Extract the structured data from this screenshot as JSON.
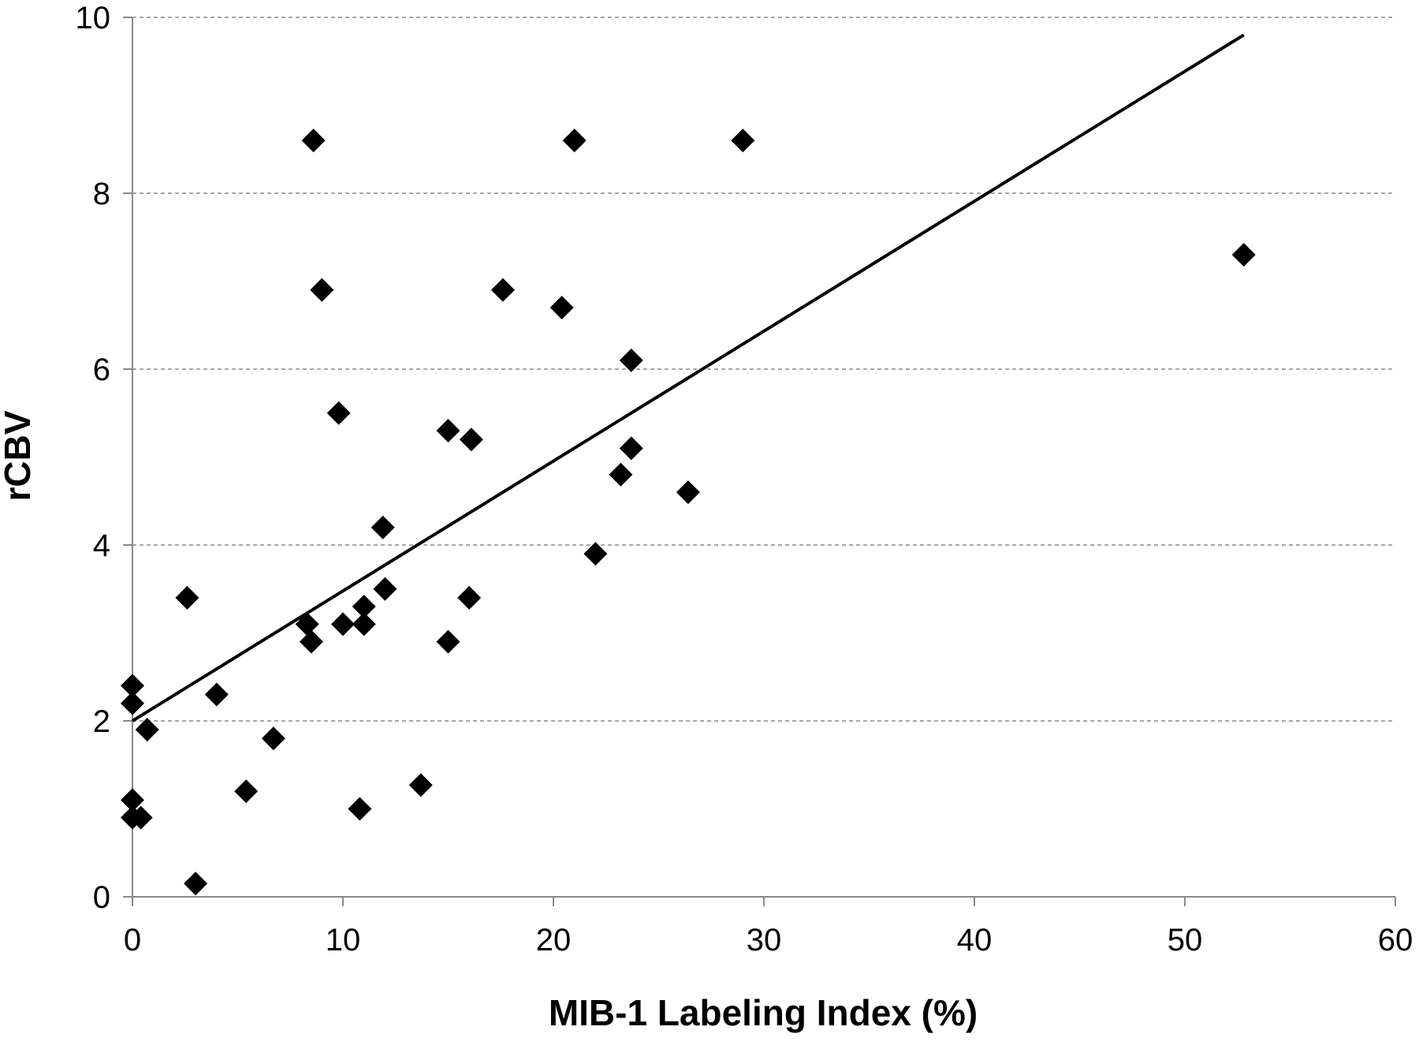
{
  "chart_data": {
    "type": "scatter",
    "title": "",
    "xlabel": "MIB-1 Labeling Index (%)",
    "ylabel": "rCBV",
    "xlim": [
      0,
      60
    ],
    "ylim": [
      0,
      10
    ],
    "x_ticks": [
      "0",
      "10",
      "20",
      "30",
      "40",
      "50",
      "60"
    ],
    "y_ticks": [
      "0",
      "2",
      "4",
      "6",
      "8",
      "10"
    ],
    "grid": {
      "horizontal": true,
      "style": "dashed"
    },
    "legend": "none",
    "marker": "diamond",
    "marker_color": "#000000",
    "trendline": {
      "type": "linear",
      "x": [
        0,
        52.8
      ],
      "y": [
        2.0,
        9.8
      ]
    },
    "points": [
      {
        "x": 0,
        "y": 2.4
      },
      {
        "x": 0,
        "y": 2.2
      },
      {
        "x": 0,
        "y": 1.1
      },
      {
        "x": 0,
        "y": 0.9
      },
      {
        "x": 0.4,
        "y": 0.9
      },
      {
        "x": 0.7,
        "y": 1.9
      },
      {
        "x": 2.6,
        "y": 3.4
      },
      {
        "x": 3.0,
        "y": 0.15
      },
      {
        "x": 4.0,
        "y": 2.3
      },
      {
        "x": 5.4,
        "y": 1.2
      },
      {
        "x": 6.7,
        "y": 1.8
      },
      {
        "x": 8.3,
        "y": 3.1
      },
      {
        "x": 8.5,
        "y": 2.9
      },
      {
        "x": 8.6,
        "y": 8.6
      },
      {
        "x": 9.0,
        "y": 6.9
      },
      {
        "x": 9.8,
        "y": 5.5
      },
      {
        "x": 10.0,
        "y": 3.1
      },
      {
        "x": 10.8,
        "y": 1.0
      },
      {
        "x": 11.0,
        "y": 3.3
      },
      {
        "x": 11.0,
        "y": 3.1
      },
      {
        "x": 11.9,
        "y": 4.2
      },
      {
        "x": 12.0,
        "y": 3.5
      },
      {
        "x": 13.7,
        "y": 1.27
      },
      {
        "x": 15.0,
        "y": 5.3
      },
      {
        "x": 15.0,
        "y": 2.9
      },
      {
        "x": 16.0,
        "y": 3.4
      },
      {
        "x": 16.1,
        "y": 5.2
      },
      {
        "x": 17.6,
        "y": 6.9
      },
      {
        "x": 20.4,
        "y": 6.7
      },
      {
        "x": 21.0,
        "y": 8.6
      },
      {
        "x": 22.0,
        "y": 3.9
      },
      {
        "x": 23.2,
        "y": 4.8
      },
      {
        "x": 23.7,
        "y": 6.1
      },
      {
        "x": 23.7,
        "y": 5.1
      },
      {
        "x": 26.4,
        "y": 4.6
      },
      {
        "x": 29.0,
        "y": 8.6
      },
      {
        "x": 52.8,
        "y": 7.3
      }
    ]
  }
}
